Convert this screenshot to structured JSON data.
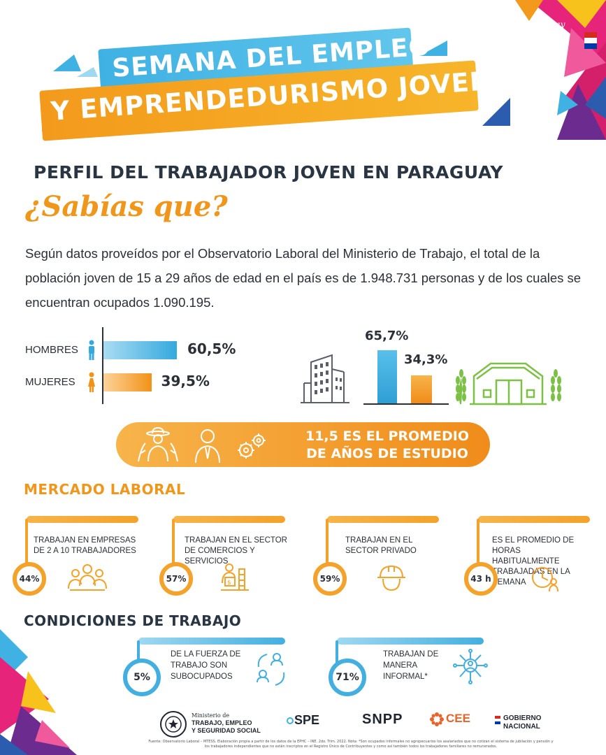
{
  "header": {
    "line1": "SEMANA DEL EMPLEO",
    "line2": "Y EMPRENDEDURISMO JOVEN",
    "brand_line1": "Paraguay",
    "brand_line2": "de la gente"
  },
  "title": "PERFIL DEL TRABAJADOR JOVEN EN PARAGUAY",
  "subtitle": "¿Sabías que?",
  "intro": "Según datos proveídos por el Observatorio Laboral del Ministerio de Trabajo, el total de la población joven de 15 a 29 años de edad en el país es de 1.948.731 personas y de los cuales se encuentran ocupados 1.090.195.",
  "gender": [
    {
      "label": "HOMBRES",
      "value": 60.5,
      "value_label": "60,5%"
    },
    {
      "label": "MUJERES",
      "value": 39.5,
      "value_label": "39,5%"
    }
  ],
  "sector": [
    {
      "value": 65.7,
      "value_label": "65,7%",
      "icon": "building-icon"
    },
    {
      "value": 34.3,
      "value_label": "34,3%",
      "icon": "barn-icon"
    }
  ],
  "study": {
    "line1": "11,5 ES EL PROMEDIO",
    "line2": "DE AÑOS DE ESTUDIO"
  },
  "mercado": {
    "title": "MERCADO LABORAL",
    "cards": [
      {
        "text": "TRABAJAN EN EMPRESAS DE  2 A 10 TRABAJADORES",
        "value": "44%",
        "icon": "team-icon"
      },
      {
        "text": "TRABAJAN EN EL SECTOR DE COMERCIOS Y SERVICIOS",
        "value": "57%",
        "icon": "commerce-icon"
      },
      {
        "text": "TRABAJAN EN EL SECTOR PRIVADO",
        "value": "59%",
        "icon": "helmet-icon"
      },
      {
        "text": "ES EL PROMEDIO DE HORAS HABITUALMENTE TRABAJADAS EN LA SEMANA",
        "value": "43 h",
        "icon": "clock-icon"
      }
    ]
  },
  "condiciones": {
    "title": "CONDICIONES DE TRABAJO",
    "cards": [
      {
        "text": "DE LA FUERZA DE TRABAJO SON SUBOCUPADOS",
        "value": "5%",
        "icon": "cycle-people-icon"
      },
      {
        "text": "TRABAJAN DE MANERA INFORMAL*",
        "value": "71%",
        "icon": "network-icon"
      }
    ]
  },
  "footer": {
    "ministry_prefix": "Ministerio de",
    "ministry_line1": "TRABAJO, EMPLEO",
    "ministry_line2": "Y SEGURIDAD SOCIAL",
    "spe": "SPE",
    "snpp": "SNPP",
    "cee": "CEE",
    "gobierno_line1": "GOBIERNO",
    "gobierno_line2": "NACIONAL",
    "note": "Fuente: Observatorio Laboral – MTESS. Elaboración propia a partir de los datos de la EPHC – INE. 2do. Trim. 2022. Nota: *Son ocupados informales no agropecuarios los asalariados que no cotizan el sistema de jubilación y pensión y los trabajadores independientes que no están inscriptos en el Registro Único de Contribuyentes y como así también todos los trabajadores familiares no remunerados."
  },
  "colors": {
    "orange": "#f4a22a",
    "blue": "#43afe0",
    "text": "#2b2f38"
  }
}
